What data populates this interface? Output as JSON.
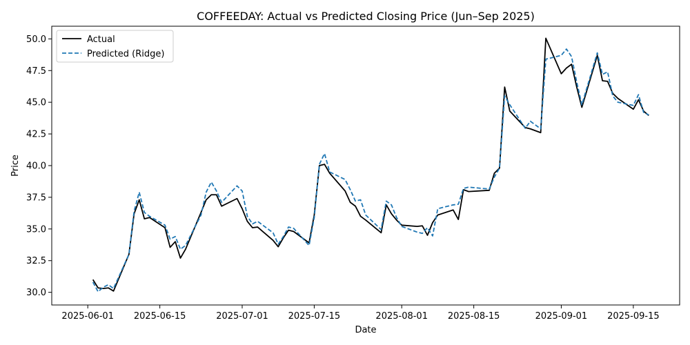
{
  "chart_data": {
    "type": "line",
    "title": "COFFEEDAY: Actual vs Predicted Closing Price (Jun–Sep 2025)",
    "xlabel": "Date",
    "ylabel": "Price",
    "x_ticks": [
      "2025-06-01",
      "2025-06-15",
      "2025-07-01",
      "2025-07-15",
      "2025-08-01",
      "2025-08-15",
      "2025-09-01",
      "2025-09-15"
    ],
    "y_ticks": [
      "30.0",
      "32.5",
      "35.0",
      "37.5",
      "40.0",
      "42.5",
      "45.0",
      "47.5",
      "50.0"
    ],
    "xlim": [
      "2025-05-25",
      "2025-09-24"
    ],
    "ylim": [
      29.0,
      51.0
    ],
    "grid": false,
    "legend_position": "top-left",
    "x": [
      "2025-06-02",
      "2025-06-03",
      "2025-06-04",
      "2025-06-05",
      "2025-06-06",
      "2025-06-09",
      "2025-06-10",
      "2025-06-11",
      "2025-06-12",
      "2025-06-13",
      "2025-06-16",
      "2025-06-17",
      "2025-06-18",
      "2025-06-19",
      "2025-06-20",
      "2025-06-23",
      "2025-06-24",
      "2025-06-25",
      "2025-06-26",
      "2025-06-27",
      "2025-06-30",
      "2025-07-01",
      "2025-07-02",
      "2025-07-03",
      "2025-07-04",
      "2025-07-07",
      "2025-07-08",
      "2025-07-09",
      "2025-07-10",
      "2025-07-11",
      "2025-07-14",
      "2025-07-15",
      "2025-07-16",
      "2025-07-17",
      "2025-07-18",
      "2025-07-21",
      "2025-07-22",
      "2025-07-23",
      "2025-07-24",
      "2025-07-25",
      "2025-07-28",
      "2025-07-29",
      "2025-07-30",
      "2025-07-31",
      "2025-08-01",
      "2025-08-04",
      "2025-08-05",
      "2025-08-06",
      "2025-08-07",
      "2025-08-08",
      "2025-08-11",
      "2025-08-12",
      "2025-08-13",
      "2025-08-14",
      "2025-08-18",
      "2025-08-19",
      "2025-08-20",
      "2025-08-21",
      "2025-08-22",
      "2025-08-25",
      "2025-08-26",
      "2025-08-28",
      "2025-08-29",
      "2025-09-01",
      "2025-09-02",
      "2025-09-03",
      "2025-09-04",
      "2025-09-05",
      "2025-09-08",
      "2025-09-09",
      "2025-09-10",
      "2025-09-11",
      "2025-09-12",
      "2025-09-15",
      "2025-09-16",
      "2025-09-17",
      "2025-09-18"
    ],
    "series": [
      {
        "name": "Actual",
        "color": "#000000",
        "style": "solid",
        "values": [
          31.0,
          30.35,
          30.3,
          30.35,
          30.1,
          33.0,
          36.2,
          37.3,
          35.8,
          35.9,
          35.1,
          33.55,
          34.0,
          32.7,
          33.4,
          36.3,
          37.3,
          37.7,
          37.7,
          36.8,
          37.4,
          36.6,
          35.6,
          35.1,
          35.15,
          34.1,
          33.6,
          34.3,
          34.9,
          34.8,
          33.9,
          36.1,
          40.0,
          40.1,
          39.4,
          38.0,
          37.1,
          36.8,
          36.0,
          35.7,
          34.7,
          36.9,
          36.2,
          35.7,
          35.3,
          35.2,
          35.25,
          34.5,
          35.5,
          36.1,
          36.5,
          35.75,
          38.1,
          37.95,
          38.05,
          39.4,
          39.8,
          46.2,
          44.3,
          43.0,
          42.9,
          42.6,
          50.05,
          47.25,
          47.7,
          48.0,
          46.2,
          44.6,
          48.7,
          46.7,
          46.65,
          45.7,
          45.3,
          44.45,
          45.2,
          44.3,
          43.95
        ]
      },
      {
        "name": "Predicted (Ridge)",
        "color": "#1f77b4",
        "style": "dashed",
        "values": [
          30.8,
          30.05,
          30.4,
          30.6,
          30.3,
          33.0,
          36.4,
          37.9,
          36.3,
          36.0,
          35.3,
          34.2,
          34.4,
          33.4,
          33.7,
          36.1,
          37.9,
          38.7,
          38.0,
          37.1,
          38.4,
          38.0,
          36.0,
          35.4,
          35.6,
          34.7,
          33.8,
          34.4,
          35.15,
          35.05,
          33.7,
          35.9,
          40.1,
          40.95,
          39.5,
          38.9,
          38.1,
          37.2,
          37.3,
          36.1,
          34.95,
          37.2,
          36.9,
          35.9,
          35.2,
          34.75,
          34.65,
          35.1,
          34.45,
          36.6,
          36.9,
          36.95,
          38.2,
          38.3,
          38.15,
          39.1,
          39.8,
          45.5,
          44.8,
          42.95,
          43.5,
          42.9,
          48.4,
          48.7,
          49.2,
          48.6,
          46.6,
          44.8,
          48.9,
          47.2,
          47.4,
          45.5,
          45.0,
          44.75,
          45.6,
          44.2,
          44.0
        ]
      }
    ]
  }
}
